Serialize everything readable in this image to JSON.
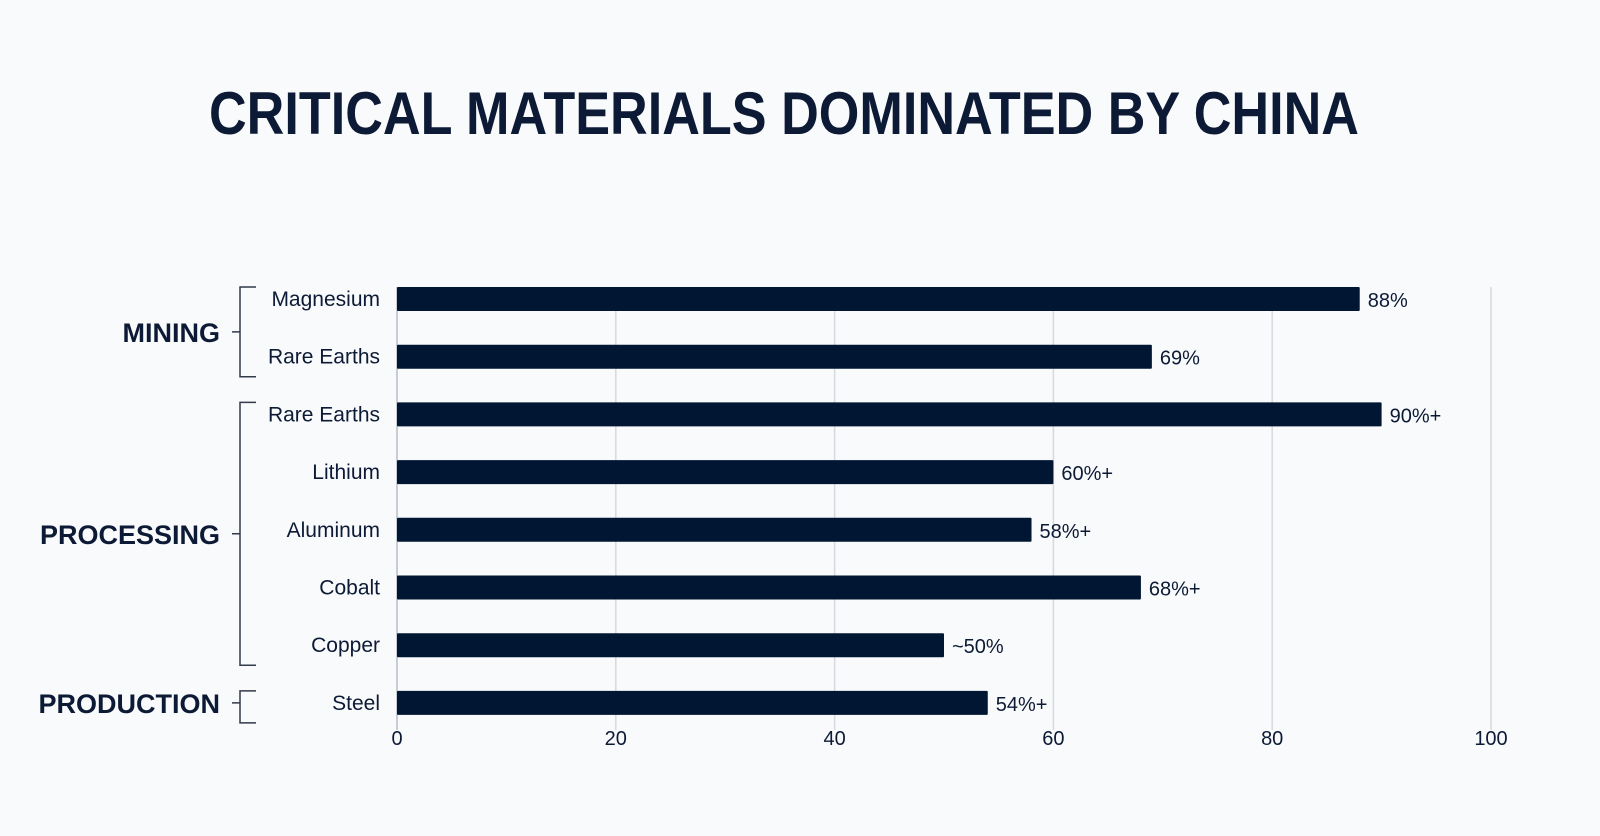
{
  "chart_data": {
    "type": "bar",
    "orientation": "horizontal",
    "title": "CRITICAL MATERIALS DOMINATED BY CHINA",
    "xlabel": "",
    "ylabel": "",
    "xlim": [
      0,
      100
    ],
    "x_ticks": [
      "0",
      "20",
      "40",
      "60",
      "80",
      "100"
    ],
    "grid": "vertical",
    "bar_color": "#011632",
    "groups": [
      {
        "label": "MINING",
        "categories": [
          "Magnesium",
          "Rare Earths"
        ]
      },
      {
        "label": "PROCESSING",
        "categories": [
          "Rare Earths",
          "Lithium",
          "Aluminum",
          "Cobalt",
          "Copper"
        ]
      },
      {
        "label": "PRODUCTION",
        "categories": [
          "Steel"
        ]
      }
    ],
    "categories": [
      "Magnesium",
      "Rare Earths",
      "Rare Earths",
      "Lithium",
      "Aluminum",
      "Cobalt",
      "Copper",
      "Steel"
    ],
    "values": [
      88,
      69,
      90,
      60,
      58,
      68,
      50,
      54
    ],
    "data_labels": [
      "88%",
      "69%",
      "90%+",
      "60%+",
      "58%+",
      "68%+",
      "~50%",
      "54%+"
    ]
  }
}
